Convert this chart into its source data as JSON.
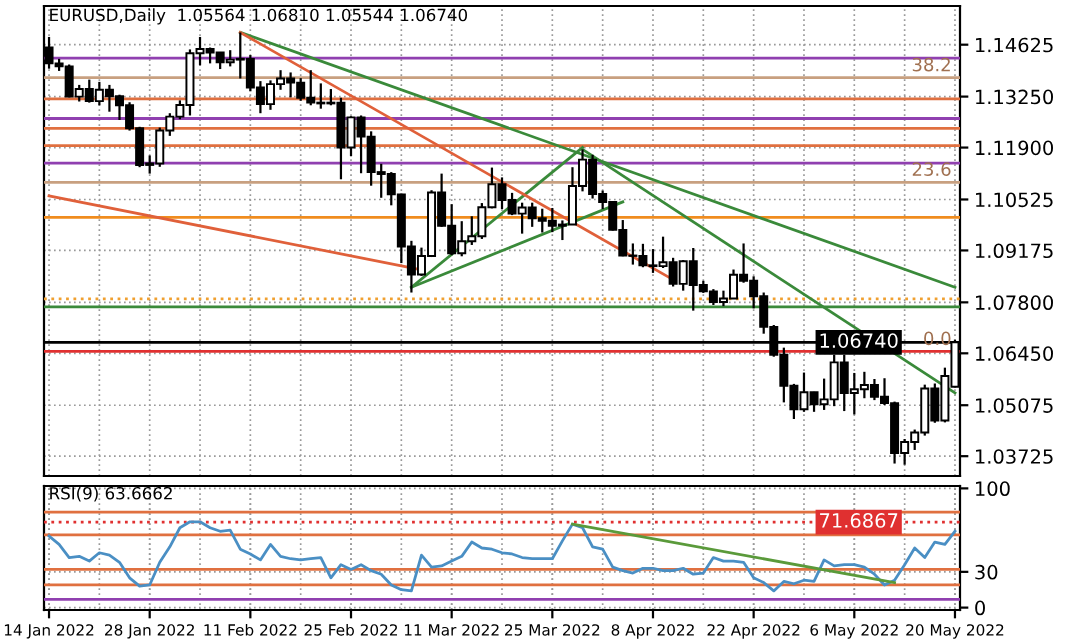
{
  "chart_data": [
    {
      "type": "candlestick",
      "title": "EURUSD,Daily  1.05564 1.06810 1.05544 1.06740",
      "categories": [
        null,
        null,
        null,
        null,
        null,
        null,
        null,
        null,
        null,
        null,
        null,
        null,
        null,
        null,
        null,
        null,
        null,
        null,
        null,
        null,
        null,
        null,
        null,
        null,
        null,
        null,
        null,
        null,
        null,
        null,
        null,
        null,
        null,
        null,
        null,
        null,
        null,
        null,
        null,
        null,
        null,
        null,
        null,
        null,
        null,
        null,
        null,
        null,
        null,
        null,
        null,
        null,
        null,
        null,
        null,
        null,
        null,
        null,
        null,
        null,
        null,
        null,
        null,
        null,
        null,
        null,
        null,
        null,
        null,
        null,
        null,
        null,
        null,
        null,
        null,
        null,
        null,
        null,
        null,
        null,
        null,
        null,
        null,
        null,
        null,
        null,
        null,
        null,
        null,
        null,
        null
      ],
      "ohlc": [
        [
          1.1455,
          1.1483,
          1.1399,
          1.1413
        ],
        [
          1.1413,
          1.1425,
          1.1393,
          1.1405
        ],
        [
          1.1405,
          1.141,
          1.1323,
          1.1325
        ],
        [
          1.1325,
          1.1356,
          1.1312,
          1.1345
        ],
        [
          1.1345,
          1.137,
          1.1309,
          1.1313
        ],
        [
          1.1313,
          1.1364,
          1.1302,
          1.1343
        ],
        [
          1.1343,
          1.1356,
          1.1285,
          1.1326
        ],
        [
          1.1326,
          1.133,
          1.1263,
          1.1302
        ],
        [
          1.1302,
          1.131,
          1.1235,
          1.1241
        ],
        [
          1.1241,
          1.1245,
          1.1138,
          1.1144
        ],
        [
          1.1144,
          1.1169,
          1.1121,
          1.1148
        ],
        [
          1.1148,
          1.1243,
          1.1139,
          1.1235
        ],
        [
          1.1235,
          1.1281,
          1.1221,
          1.1272
        ],
        [
          1.1272,
          1.1315,
          1.1265,
          1.1303
        ],
        [
          1.1303,
          1.145,
          1.1275,
          1.144
        ],
        [
          1.144,
          1.1483,
          1.1408,
          1.1451
        ],
        [
          1.1451,
          1.1455,
          1.1413,
          1.1442
        ],
        [
          1.1442,
          1.1443,
          1.1398,
          1.1416
        ],
        [
          1.1416,
          1.1448,
          1.1405,
          1.1423
        ],
        [
          1.1423,
          1.1495,
          1.1373,
          1.1425
        ],
        [
          1.1425,
          1.1435,
          1.1339,
          1.1349
        ],
        [
          1.1349,
          1.1366,
          1.1281,
          1.1305
        ],
        [
          1.1305,
          1.1368,
          1.129,
          1.1358
        ],
        [
          1.1358,
          1.1395,
          1.1343,
          1.1373
        ],
        [
          1.1373,
          1.1389,
          1.1323,
          1.1362
        ],
        [
          1.1362,
          1.1374,
          1.1314,
          1.1322
        ],
        [
          1.1322,
          1.1395,
          1.1302,
          1.1309
        ],
        [
          1.1309,
          1.136,
          1.1293,
          1.1307
        ],
        [
          1.1307,
          1.1345,
          1.1302,
          1.1309
        ],
        [
          1.1309,
          1.1322,
          1.1106,
          1.119
        ],
        [
          1.119,
          1.1273,
          1.1167,
          1.127
        ],
        [
          1.127,
          1.1275,
          1.1122,
          1.1219
        ],
        [
          1.1219,
          1.1233,
          1.1089,
          1.1125
        ],
        [
          1.1125,
          1.1147,
          1.1057,
          1.112
        ],
        [
          1.112,
          1.1125,
          1.1037,
          1.1066
        ],
        [
          1.1066,
          1.1068,
          1.0884,
          1.0928
        ],
        [
          1.0928,
          1.0943,
          1.0806,
          1.0854
        ],
        [
          1.0854,
          1.0925,
          1.085,
          1.0903
        ],
        [
          1.0903,
          1.1077,
          1.09,
          1.1071
        ],
        [
          1.1071,
          1.1121,
          1.098,
          1.0983
        ],
        [
          1.0983,
          1.104,
          1.0905,
          1.091
        ],
        [
          1.091,
          1.0995,
          1.0902,
          1.0942
        ],
        [
          1.0942,
          1.1008,
          1.0932,
          1.0955
        ],
        [
          1.0955,
          1.1043,
          1.0948,
          1.1032
        ],
        [
          1.1032,
          1.1137,
          1.1029,
          1.1093
        ],
        [
          1.1093,
          1.1111,
          1.1027,
          1.1051
        ],
        [
          1.1051,
          1.107,
          1.1011,
          1.1015
        ],
        [
          1.1015,
          1.1044,
          1.0962,
          1.1031
        ],
        [
          1.1031,
          1.1044,
          1.098,
          1.1003
        ],
        [
          1.1003,
          1.1028,
          1.0965,
          1.0996
        ],
        [
          1.0996,
          1.103,
          1.0966,
          1.0983
        ],
        [
          1.0983,
          1.0997,
          1.0945,
          1.0986
        ],
        [
          1.0986,
          1.1138,
          1.0985,
          1.1088
        ],
        [
          1.1088,
          1.1185,
          1.1074,
          1.1158
        ],
        [
          1.1158,
          1.1171,
          1.1055,
          1.1067
        ],
        [
          1.1067,
          1.1076,
          1.1027,
          1.1046
        ],
        [
          1.1046,
          1.1047,
          1.097,
          1.0972
        ],
        [
          1.0972,
          1.0998,
          1.0902,
          1.0904
        ],
        [
          1.0904,
          1.0936,
          1.088,
          1.0903
        ],
        [
          1.0903,
          1.0935,
          1.0873,
          1.0878
        ],
        [
          1.0878,
          1.0921,
          1.0858,
          1.0876
        ],
        [
          1.0876,
          1.0954,
          1.0871,
          1.0886
        ],
        [
          1.0886,
          1.0898,
          1.0822,
          1.0829
        ],
        [
          1.0829,
          1.0892,
          1.0811,
          1.0889
        ],
        [
          1.0889,
          1.0924,
          1.0758,
          1.0826
        ],
        [
          1.0826,
          1.0837,
          1.0805,
          1.0809
        ],
        [
          1.0809,
          1.0815,
          1.0773,
          1.0781
        ],
        [
          1.0781,
          1.0811,
          1.077,
          1.079
        ],
        [
          1.079,
          1.0867,
          1.079,
          1.0853
        ],
        [
          1.0853,
          1.0936,
          1.0832,
          1.0837
        ],
        [
          1.0837,
          1.0849,
          1.0764,
          1.0796
        ],
        [
          1.0796,
          1.0806,
          1.0697,
          1.0715
        ],
        [
          1.0715,
          1.072,
          1.0636,
          1.0641
        ],
        [
          1.0641,
          1.066,
          1.0515,
          1.0559
        ],
        [
          1.0559,
          1.0564,
          1.0471,
          1.0497
        ],
        [
          1.0497,
          1.0594,
          1.049,
          1.0542
        ],
        [
          1.0542,
          1.0543,
          1.049,
          1.051
        ],
        [
          1.051,
          1.0578,
          1.0495,
          1.0523
        ],
        [
          1.0523,
          1.0641,
          1.0505,
          1.0621
        ],
        [
          1.0621,
          1.0641,
          1.0492,
          1.054
        ],
        [
          1.054,
          1.0593,
          1.0483,
          1.055
        ],
        [
          1.055,
          1.0596,
          1.0526,
          1.0561
        ],
        [
          1.0561,
          1.0577,
          1.0521,
          1.053
        ],
        [
          1.053,
          1.0579,
          1.0508,
          1.0513
        ],
        [
          1.0513,
          1.0517,
          1.0353,
          1.0381
        ],
        [
          1.0381,
          1.0418,
          1.035,
          1.041
        ],
        [
          1.041,
          1.0443,
          1.0389,
          1.0435
        ],
        [
          1.0435,
          1.0562,
          1.0427,
          1.0552
        ],
        [
          1.0552,
          1.0565,
          1.0461,
          1.0467
        ],
        [
          1.0467,
          1.0607,
          1.0462,
          1.0585
        ],
        [
          1.05564,
          1.0681,
          1.05544,
          1.0674
        ]
      ],
      "series": [
        {
          "type": "line",
          "color": "#3a8a3a",
          "values": [
            null,
            null,
            null,
            null,
            null,
            null,
            null,
            null,
            null,
            null,
            null,
            null,
            null,
            null,
            null,
            null,
            null,
            null,
            null,
            1.1495,
            null,
            null,
            null,
            null,
            null,
            null,
            null,
            null,
            null,
            null,
            null,
            null,
            null,
            null,
            null,
            null,
            null,
            null,
            null,
            null,
            null,
            null,
            null,
            null,
            null,
            null,
            null,
            null,
            null,
            null,
            null,
            null,
            null,
            null,
            null,
            null,
            null,
            null,
            null,
            null,
            null,
            null,
            null,
            null,
            null,
            null,
            null,
            null,
            null,
            null,
            null,
            null,
            null,
            null,
            null,
            null,
            null,
            null,
            null,
            null,
            null,
            null,
            null,
            null,
            null,
            null,
            null,
            null,
            null,
            null,
            1.082
          ]
        },
        {
          "type": "line",
          "color": "#3a8a3a",
          "values": [
            null,
            null,
            null,
            null,
            null,
            null,
            null,
            null,
            null,
            null,
            null,
            null,
            null,
            null,
            null,
            null,
            null,
            null,
            null,
            null,
            null,
            null,
            null,
            null,
            null,
            null,
            null,
            null,
            null,
            null,
            null,
            null,
            null,
            null,
            null,
            null,
            null,
            null,
            null,
            null,
            null,
            null,
            null,
            null,
            null,
            null,
            null,
            null,
            null,
            null,
            null,
            null,
            null,
            1.1185,
            null,
            null,
            null,
            null,
            null,
            null,
            null,
            null,
            null,
            null,
            null,
            null,
            null,
            null,
            null,
            null,
            null,
            null,
            null,
            null,
            null,
            null,
            null,
            null,
            null,
            null,
            null,
            null,
            null,
            null,
            null,
            null,
            null,
            null,
            null,
            null,
            1.054
          ]
        },
        {
          "type": "line",
          "color": "#3a8a3a",
          "values": [
            null,
            null,
            null,
            null,
            null,
            null,
            null,
            null,
            null,
            null,
            null,
            null,
            null,
            null,
            null,
            null,
            null,
            null,
            null,
            null,
            null,
            null,
            null,
            null,
            null,
            null,
            null,
            null,
            null,
            null,
            null,
            null,
            null,
            null,
            null,
            null,
            1.082,
            null,
            null,
            null,
            null,
            null,
            null,
            null,
            null,
            null,
            null,
            null,
            null,
            null,
            null,
            null,
            null,
            1.119,
            null,
            null,
            null,
            null,
            null,
            null,
            null,
            null,
            null,
            null,
            null,
            null,
            null,
            null,
            null,
            null,
            null,
            null,
            null,
            null,
            null,
            null,
            null,
            null,
            null,
            null,
            null,
            null,
            null,
            null,
            null,
            null,
            null,
            null,
            null,
            null,
            null
          ]
        },
        {
          "type": "line",
          "color": "#3a8a3a",
          "values": [
            null,
            null,
            null,
            null,
            null,
            null,
            null,
            null,
            null,
            null,
            null,
            null,
            null,
            null,
            null,
            null,
            null,
            null,
            null,
            null,
            null,
            null,
            null,
            null,
            null,
            null,
            null,
            null,
            null,
            null,
            null,
            null,
            null,
            null,
            null,
            null,
            1.082,
            null,
            null,
            null,
            null,
            null,
            null,
            null,
            null,
            null,
            null,
            null,
            null,
            null,
            null,
            null,
            null,
            null,
            null,
            null,
            null,
            1.1046,
            null,
            null,
            null,
            null,
            null,
            null,
            null,
            null,
            null,
            null,
            null,
            null,
            null,
            null,
            null,
            null,
            null,
            null,
            null,
            null,
            null,
            null,
            null,
            null,
            null,
            null,
            null,
            null,
            null,
            null,
            null,
            null,
            null
          ]
        },
        {
          "type": "line",
          "color": "#e0603a",
          "values": [
            null,
            null,
            null,
            null,
            null,
            null,
            null,
            null,
            null,
            null,
            null,
            null,
            null,
            null,
            null,
            null,
            null,
            null,
            null,
            1.1495,
            null,
            null,
            null,
            null,
            null,
            null,
            null,
            null,
            null,
            null,
            null,
            null,
            null,
            null,
            null,
            null,
            null,
            null,
            null,
            null,
            null,
            null,
            null,
            null,
            null,
            null,
            null,
            null,
            null,
            null,
            null,
            null,
            null,
            null,
            null,
            null,
            null,
            null,
            null,
            null,
            null,
            null,
            1.084,
            null,
            null,
            null,
            null,
            null,
            null,
            null,
            null,
            null,
            null,
            null,
            null,
            null,
            null,
            null,
            null,
            null,
            null,
            null,
            null,
            null,
            null,
            null,
            null,
            null,
            null,
            null,
            null
          ]
        },
        {
          "type": "line",
          "color": "#e0603a",
          "values": [
            1.1062,
            null,
            null,
            null,
            null,
            null,
            null,
            null,
            null,
            null,
            null,
            null,
            null,
            null,
            null,
            null,
            null,
            null,
            null,
            null,
            null,
            null,
            null,
            null,
            null,
            null,
            null,
            null,
            null,
            null,
            null,
            null,
            null,
            null,
            null,
            null,
            null,
            1.0866,
            null,
            null,
            null,
            null,
            null,
            null,
            null,
            null,
            null,
            null,
            null,
            null,
            null,
            null,
            null,
            null,
            null,
            null,
            null,
            null,
            null,
            null,
            null,
            null,
            null,
            null,
            null,
            null,
            null,
            null,
            null,
            null,
            null,
            null,
            null,
            null,
            null,
            null,
            null,
            null,
            null,
            null,
            null,
            null,
            null,
            null,
            null,
            null,
            null,
            null,
            null,
            null,
            null
          ]
        }
      ],
      "ylim": [
        1.032,
        1.1565
      ],
      "yticks": [
        {
          "value": 1.14625,
          "label": "1.14625"
        },
        {
          "value": 1.1325,
          "label": "1.13250"
        },
        {
          "value": 1.119,
          "label": "1.11900"
        },
        {
          "value": 1.10525,
          "label": "1.10525"
        },
        {
          "value": 1.09175,
          "label": "1.09175"
        },
        {
          "value": 1.078,
          "label": "1.07800"
        },
        {
          "value": 1.0645,
          "label": "1.06450"
        },
        {
          "value": 1.05075,
          "label": "1.05075"
        },
        {
          "value": 1.03725,
          "label": "1.03725"
        }
      ],
      "ref_lines": [
        {
          "axis": "y",
          "value": 1.1427,
          "color": "#9040b0"
        },
        {
          "axis": "y",
          "value": 1.1375,
          "color": "#c8a080"
        },
        {
          "axis": "y",
          "value": 1.1319,
          "color": "#e07040"
        },
        {
          "axis": "y",
          "value": 1.1267,
          "color": "#9040b0"
        },
        {
          "axis": "y",
          "value": 1.1241,
          "color": "#e07040"
        },
        {
          "axis": "y",
          "value": 1.1195,
          "color": "#e07040"
        },
        {
          "axis": "y",
          "value": 1.1149,
          "color": "#9040b0"
        },
        {
          "axis": "y",
          "value": 1.1098,
          "color": "#c8a080"
        },
        {
          "axis": "y",
          "value": 1.1005,
          "color": "#f08c1e"
        },
        {
          "axis": "y",
          "value": 1.0789,
          "color": "#f0a030",
          "line_style": "dotted"
        },
        {
          "axis": "y",
          "value": 1.0768,
          "color": "#3a8a3a"
        },
        {
          "axis": "y",
          "value": 1.0674,
          "color": "#000000",
          "label": "1.06740"
        },
        {
          "axis": "y",
          "value": 1.065,
          "color": "#e03030"
        }
      ],
      "annotations": [
        {
          "text": "38.2",
          "y": 1.1375
        },
        {
          "text": "23.6",
          "y": 1.1098
        },
        {
          "text": "0.0",
          "y": 1.065
        }
      ],
      "grid": true,
      "tick_labels": "y"
    },
    {
      "type": "line",
      "title": "RSI(9) 63.6662",
      "categories": [
        "14 Jan 2022",
        null,
        null,
        null,
        null,
        null,
        null,
        null,
        null,
        null,
        "28 Jan 2022",
        null,
        null,
        null,
        null,
        null,
        null,
        null,
        null,
        null,
        "11 Feb 2022",
        null,
        null,
        null,
        null,
        null,
        null,
        null,
        null,
        null,
        "25 Feb 2022",
        null,
        null,
        null,
        null,
        null,
        null,
        null,
        null,
        null,
        "11 Mar 2022",
        null,
        null,
        null,
        null,
        null,
        null,
        null,
        null,
        null,
        "25 Mar 2022",
        null,
        null,
        null,
        null,
        null,
        null,
        null,
        null,
        null,
        "8 Apr 2022",
        null,
        null,
        null,
        null,
        null,
        null,
        null,
        null,
        null,
        "22 Apr 2022",
        null,
        null,
        null,
        null,
        null,
        null,
        null,
        null,
        null,
        "6 May 2022",
        null,
        null,
        null,
        null,
        null,
        null,
        null,
        null,
        null,
        "20 May 2022"
      ],
      "series": [
        {
          "color": "#4a8fc4",
          "values": [
            60,
            53,
            42,
            43,
            39,
            46,
            44,
            38,
            25,
            18,
            19,
            38,
            51,
            67,
            72,
            72,
            67,
            64,
            65,
            49,
            45,
            40,
            53,
            43,
            41,
            40,
            41,
            42,
            25,
            36,
            32,
            36,
            31,
            28,
            19,
            15,
            14,
            44,
            34,
            35,
            39,
            43,
            55,
            50,
            49,
            46,
            45,
            42,
            41,
            41,
            41,
            56,
            70,
            67,
            51,
            49,
            34,
            31,
            29,
            33,
            33,
            31,
            31,
            33,
            28,
            29,
            42,
            39,
            39,
            38,
            25,
            21,
            14,
            22,
            20,
            23,
            22,
            40,
            35,
            36,
            36,
            34,
            28,
            19,
            23,
            36,
            50,
            42,
            55,
            53,
            64
          ]
        },
        {
          "type": "line",
          "color": "#5a9a3a",
          "values": [
            null,
            null,
            null,
            null,
            null,
            null,
            null,
            null,
            null,
            null,
            null,
            null,
            null,
            null,
            null,
            null,
            null,
            null,
            null,
            null,
            null,
            null,
            null,
            null,
            null,
            null,
            null,
            null,
            null,
            null,
            null,
            null,
            null,
            null,
            null,
            null,
            null,
            null,
            null,
            null,
            null,
            null,
            null,
            null,
            null,
            null,
            null,
            null,
            null,
            null,
            null,
            null,
            70,
            null,
            null,
            null,
            null,
            null,
            null,
            null,
            null,
            null,
            null,
            null,
            null,
            null,
            null,
            null,
            null,
            null,
            null,
            null,
            null,
            null,
            null,
            null,
            null,
            null,
            null,
            null,
            null,
            null,
            null,
            null,
            21,
            null,
            null,
            null,
            null,
            null,
            null
          ]
        }
      ],
      "ylim": [
        -2,
        102
      ],
      "yticks": [
        0,
        30,
        100
      ],
      "ref_lines": [
        {
          "axis": "y",
          "value": 80,
          "color": "#e07040"
        },
        {
          "axis": "y",
          "value": 71.6867,
          "color": "#e03030",
          "label": "71.6867",
          "line_style": "dotted"
        },
        {
          "axis": "y",
          "value": 61,
          "color": "#e07040"
        },
        {
          "axis": "y",
          "value": 32,
          "color": "#e07040"
        },
        {
          "axis": "y",
          "value": 19,
          "color": "#e07040"
        },
        {
          "axis": "y",
          "value": 7,
          "color": "#9040b0"
        }
      ],
      "grid": true
    }
  ]
}
